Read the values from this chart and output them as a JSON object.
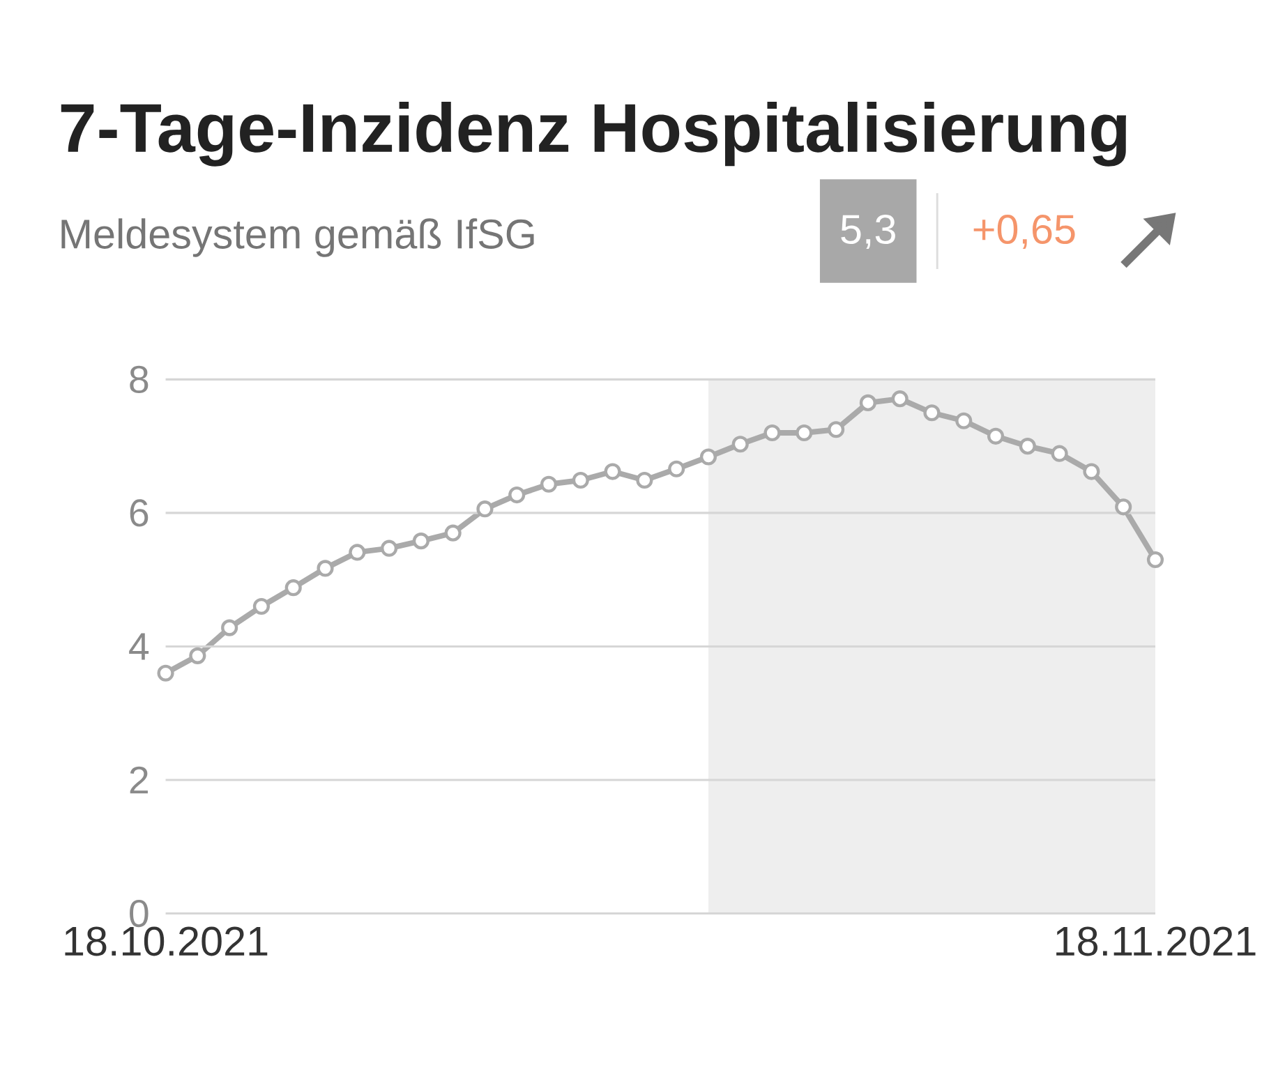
{
  "chart_data": {
    "type": "line",
    "title": "7-Tage-Inzidenz Hospitalisierung",
    "subtitle": "Meldesystem gemäß IfSG",
    "annotations": [
      "5,3",
      "+0,65"
    ],
    "x": [
      "2021-10-18",
      "2021-10-19",
      "2021-10-20",
      "2021-10-21",
      "2021-10-22",
      "2021-10-23",
      "2021-10-24",
      "2021-10-25",
      "2021-10-26",
      "2021-10-27",
      "2021-10-28",
      "2021-10-29",
      "2021-10-30",
      "2021-10-31",
      "2021-11-01",
      "2021-11-02",
      "2021-11-03",
      "2021-11-04",
      "2021-11-05",
      "2021-11-06",
      "2021-11-07",
      "2021-11-08",
      "2021-11-09",
      "2021-11-10",
      "2021-11-11",
      "2021-11-12",
      "2021-11-13",
      "2021-11-14",
      "2021-11-15",
      "2021-11-16",
      "2021-11-17",
      "2021-11-18"
    ],
    "values": [
      3.6,
      3.86,
      4.28,
      4.6,
      4.88,
      5.17,
      5.41,
      5.47,
      5.58,
      5.7,
      6.06,
      6.27,
      6.43,
      6.49,
      6.62,
      6.49,
      6.66,
      6.84,
      7.03,
      7.2,
      7.2,
      7.25,
      7.65,
      7.71,
      7.5,
      7.38,
      7.15,
      7.0,
      6.89,
      6.62,
      6.09,
      5.3
    ],
    "color": "#aaaaaa",
    "marker": "circle",
    "line_style": "solid",
    "xlim": [
      "2021-10-18",
      "2021-11-18"
    ],
    "xticks": [
      {
        "value": "2021-10-18",
        "label": "18.10.2021"
      },
      {
        "value": "2021-11-18",
        "label": "18.11.2021"
      }
    ],
    "ylim": [
      0,
      8
    ],
    "yticks": [
      0,
      2,
      4,
      6,
      8
    ],
    "grid": "y",
    "bands": [
      {
        "axis": "x",
        "from": "2021-11-04",
        "to": "2021-11-18",
        "color": "#eeeeee"
      }
    ]
  }
}
